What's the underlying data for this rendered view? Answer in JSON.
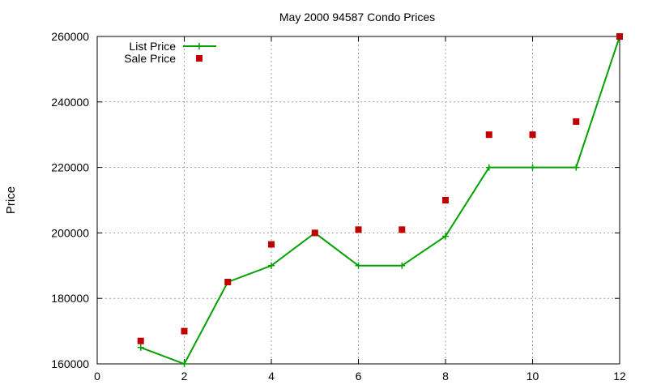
{
  "chart_data": {
    "type": "line",
    "title": "May 2000 94587 Condo Prices",
    "xlabel": "",
    "ylabel": "Price",
    "xlim": [
      0,
      12
    ],
    "ylim": [
      160000,
      260000
    ],
    "xticks": [
      0,
      2,
      4,
      6,
      8,
      10,
      12
    ],
    "yticks": [
      160000,
      180000,
      200000,
      220000,
      240000,
      260000
    ],
    "grid": true,
    "legend_position": "top-left",
    "series": [
      {
        "name": "List Price",
        "style": "line-with-plus-markers",
        "color": "#00a000",
        "x": [
          1,
          2,
          3,
          4,
          5,
          6,
          7,
          8,
          9,
          10,
          11,
          12
        ],
        "y": [
          165000,
          160000,
          185000,
          190000,
          200000,
          190000,
          190000,
          199000,
          220000,
          220000,
          220000,
          260000
        ]
      },
      {
        "name": "Sale Price",
        "style": "square-markers",
        "color": "#c00000",
        "x": [
          1,
          2,
          3,
          4,
          5,
          6,
          7,
          8,
          9,
          10,
          11,
          12
        ],
        "y": [
          167000,
          170000,
          185000,
          196500,
          200000,
          201000,
          201000,
          210000,
          230000,
          230000,
          234000,
          260000
        ]
      }
    ]
  }
}
